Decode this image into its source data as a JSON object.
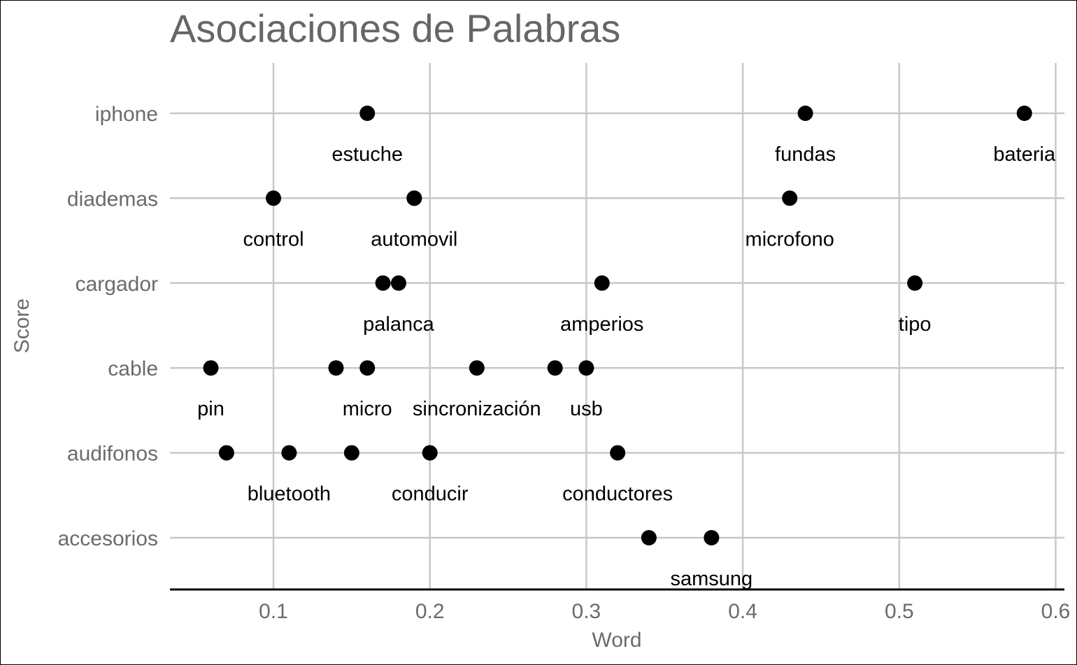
{
  "chart_data": {
    "type": "scatter",
    "title": "Asociaciones de Palabras",
    "xlabel": "Word",
    "ylabel": "Score",
    "xlim": [
      0.035,
      0.6
    ],
    "x_ticks": [
      "0.1",
      "0.2",
      "0.3",
      "0.4",
      "0.5",
      "0.6"
    ],
    "x_tick_values": [
      0.1,
      0.2,
      0.3,
      0.4,
      0.5,
      0.6
    ],
    "categories": [
      "iphone",
      "diademas",
      "cargador",
      "cable",
      "audifonos",
      "accesorios"
    ],
    "grid": true,
    "points": [
      {
        "category": "iphone",
        "x": 0.16,
        "label": "estuche"
      },
      {
        "category": "iphone",
        "x": 0.44,
        "label": "fundas"
      },
      {
        "category": "iphone",
        "x": 0.58,
        "label": "bateria"
      },
      {
        "category": "diademas",
        "x": 0.1,
        "label": "control"
      },
      {
        "category": "diademas",
        "x": 0.19,
        "label": "automovil"
      },
      {
        "category": "diademas",
        "x": 0.19,
        "label": ""
      },
      {
        "category": "diademas",
        "x": 0.43,
        "label": "microfono"
      },
      {
        "category": "cargador",
        "x": 0.17,
        "label": ""
      },
      {
        "category": "cargador",
        "x": 0.18,
        "label": "palanca"
      },
      {
        "category": "cargador",
        "x": 0.31,
        "label": "amperios"
      },
      {
        "category": "cargador",
        "x": 0.51,
        "label": "tipo"
      },
      {
        "category": "cable",
        "x": 0.06,
        "label": "pin"
      },
      {
        "category": "cable",
        "x": 0.14,
        "label": ""
      },
      {
        "category": "cable",
        "x": 0.16,
        "label": "micro"
      },
      {
        "category": "cable",
        "x": 0.23,
        "label": "sincronización"
      },
      {
        "category": "cable",
        "x": 0.28,
        "label": ""
      },
      {
        "category": "cable",
        "x": 0.3,
        "label": "usb"
      },
      {
        "category": "audifonos",
        "x": 0.07,
        "label": ""
      },
      {
        "category": "audifonos",
        "x": 0.11,
        "label": "bluetooth"
      },
      {
        "category": "audifonos",
        "x": 0.15,
        "label": ""
      },
      {
        "category": "audifonos",
        "x": 0.2,
        "label": "conducir"
      },
      {
        "category": "audifonos",
        "x": 0.32,
        "label": "conductores"
      },
      {
        "category": "accesorios",
        "x": 0.34,
        "label": ""
      },
      {
        "category": "accesorios",
        "x": 0.38,
        "label": "samsung"
      }
    ]
  },
  "colors": {
    "point": "#000000",
    "grid": "#c8c8c8",
    "text_muted": "#666666"
  }
}
